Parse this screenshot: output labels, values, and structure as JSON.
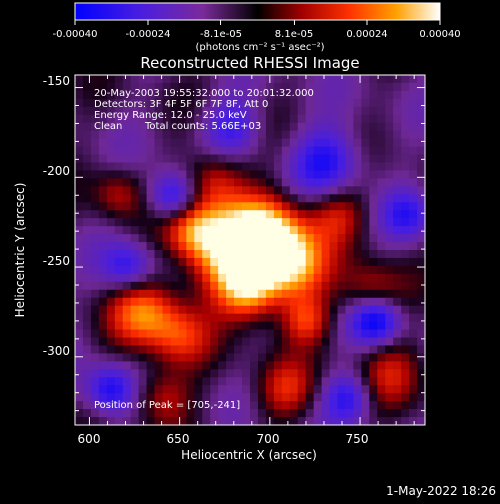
{
  "colorbar": {
    "tick_labels": [
      "-0.00040",
      "-0.00024",
      "-8.1e-05",
      "8.1e-05",
      "0.00024",
      "0.00040"
    ],
    "tick_values": [
      -0.0004,
      -0.00024,
      -8.1e-05,
      8.1e-05,
      0.00024,
      0.0004
    ],
    "range": [
      -0.0004,
      0.0004
    ],
    "units": "(photons cm⁻² s⁻¹ asec⁻²)",
    "colors": [
      "#0000ff",
      "#5020c8",
      "#7a2a9a",
      "#000000",
      "#b00000",
      "#ff4000",
      "#ffb000",
      "#ffffff"
    ]
  },
  "plot": {
    "title": "Reconstructed RHESSI Image",
    "xlabel": "Heliocentric X (arcsec)",
    "ylabel": "Heliocentric Y (arcsec)",
    "x_ticks": [
      "600",
      "650",
      "700",
      "750"
    ],
    "y_ticks": [
      "-150",
      "-200",
      "-250",
      "-300"
    ],
    "xlim": [
      592,
      786
    ],
    "ylim": [
      -338,
      -143
    ]
  },
  "annotations": {
    "time_range": "20-May-2003 19:55:32.000 to 20:01:32.000",
    "detectors": "Detectors: 3F 4F 5F 6F 7F 8F, Att 0",
    "energy": "Energy Range: 12.0 - 25.0 keV",
    "clean_label": "Clean",
    "total_counts": "Total counts: 5.66E+03",
    "peak": "Position of Peak = [705,-241]"
  },
  "footer": {
    "date": "1-May-2022 18:26"
  }
}
